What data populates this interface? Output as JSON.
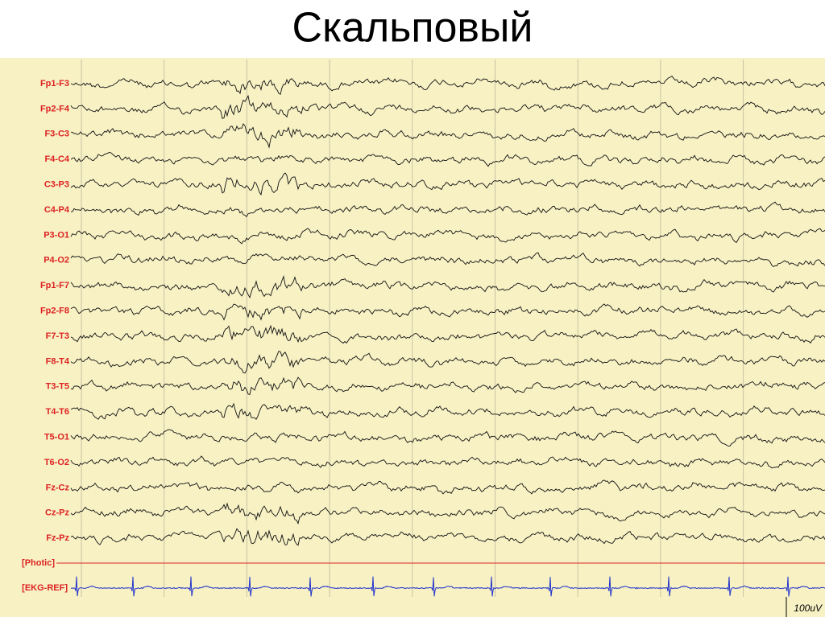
{
  "title": "Скальповый",
  "channels": [
    "Fp1-F3",
    "Fp2-F4",
    "F3-C3",
    "F4-C4",
    "C3-P3",
    "C4-P4",
    "P3-O1",
    "P4-O2",
    "Fp1-F7",
    "Fp2-F8",
    "F7-T3",
    "F8-T4",
    "T3-T5",
    "T4-T6",
    "T5-O1",
    "T6-O2",
    "Fz-Cz",
    "Cz-Pz",
    "Fz-Pz"
  ],
  "aux_channels": [
    "[Photic]",
    "[EKG-REF]"
  ],
  "scale_label": "100uV"
}
